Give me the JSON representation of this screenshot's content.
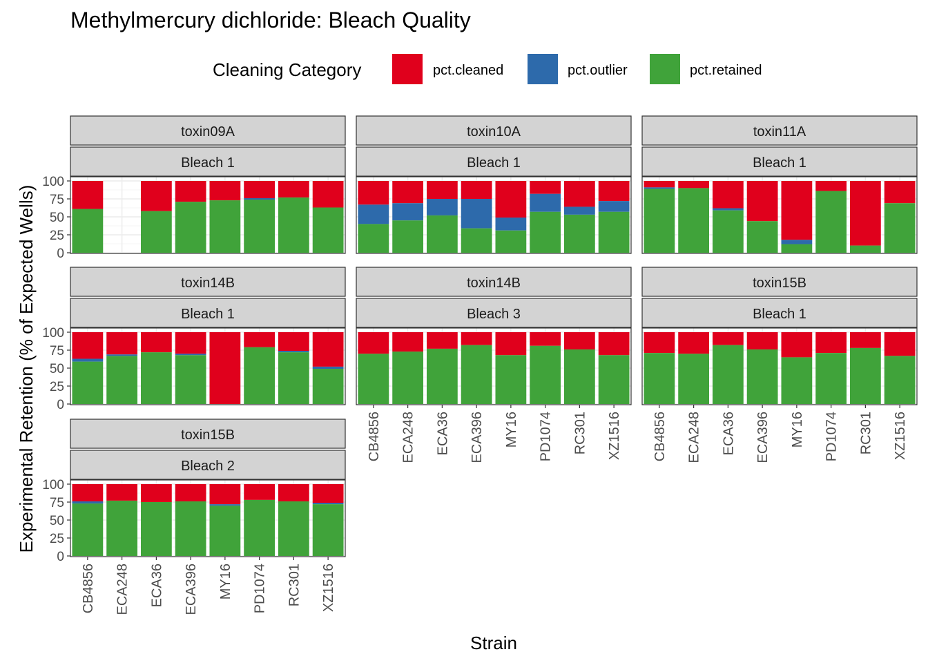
{
  "chart_data": {
    "type": "bar",
    "stacked": true,
    "title": "Methylmercury dichloride: Bleach Quality",
    "xlabel": "Strain",
    "ylabel": "Experimental Retention (% of Expected Wells)",
    "ylim": [
      0,
      100
    ],
    "yticks": [
      "0",
      "25",
      "50",
      "75",
      "100"
    ],
    "legend": {
      "title": "Cleaning Category",
      "position": "top",
      "entries": [
        {
          "name": "pct.cleaned",
          "color": "#E0001C"
        },
        {
          "name": "pct.outlier",
          "color": "#2D6AAB"
        },
        {
          "name": "pct.retained",
          "color": "#40A33A"
        }
      ]
    },
    "categories": [
      "CB4856",
      "ECA248",
      "ECA36",
      "ECA396",
      "MY16",
      "PD1074",
      "RC301",
      "XZ1516"
    ],
    "panels": [
      {
        "toxin": "toxin09A",
        "bleach": "Bleach 1",
        "retained": [
          61,
          null,
          58,
          71,
          73,
          74,
          77,
          63
        ],
        "outlier": [
          0,
          null,
          0,
          0,
          0,
          2,
          0,
          0
        ]
      },
      {
        "toxin": "toxin10A",
        "bleach": "Bleach 1",
        "retained": [
          40,
          45,
          52,
          34,
          31,
          57,
          53,
          57
        ],
        "outlier": [
          27,
          24,
          23,
          41,
          18,
          25,
          11,
          15
        ]
      },
      {
        "toxin": "toxin11A",
        "bleach": "Bleach 1",
        "retained": [
          89,
          90,
          59,
          44,
          12,
          86,
          10,
          69
        ],
        "outlier": [
          2,
          0,
          3,
          0,
          6,
          0,
          0,
          0
        ]
      },
      {
        "toxin": "toxin14B",
        "bleach": "Bleach 1",
        "retained": [
          59,
          67,
          72,
          68,
          0,
          79,
          72,
          49
        ],
        "outlier": [
          4,
          2,
          0,
          2,
          0,
          0,
          2,
          3
        ]
      },
      {
        "toxin": "toxin14B",
        "bleach": "Bleach 3",
        "retained": [
          70,
          73,
          77,
          82,
          68,
          81,
          76,
          68
        ],
        "outlier": [
          0,
          0,
          0,
          0,
          0,
          0,
          0,
          0
        ]
      },
      {
        "toxin": "toxin15B",
        "bleach": "Bleach 1",
        "retained": [
          71,
          70,
          82,
          76,
          65,
          71,
          78,
          67
        ],
        "outlier": [
          0,
          0,
          0,
          0,
          0,
          0,
          0,
          0
        ]
      },
      {
        "toxin": "toxin15B",
        "bleach": "Bleach 2",
        "retained": [
          73,
          77,
          75,
          76,
          70,
          78,
          76,
          72
        ],
        "outlier": [
          3,
          0,
          0,
          0,
          2,
          0,
          0,
          2
        ]
      }
    ]
  }
}
